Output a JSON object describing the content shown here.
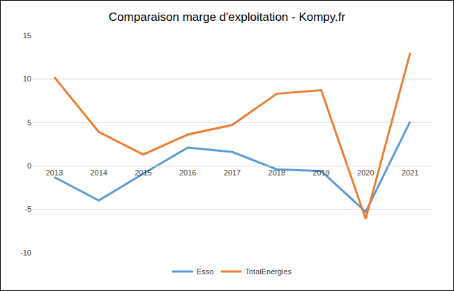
{
  "chart_data": {
    "type": "line",
    "title": "Comparaison marge d'exploitation - Kompy.fr",
    "categories": [
      "2013",
      "2014",
      "2015",
      "2016",
      "2017",
      "2018",
      "2019",
      "2020",
      "2021"
    ],
    "series": [
      {
        "name": "Esso",
        "color": "#5B9BD5",
        "values": [
          -1.3,
          -4.0,
          -0.9,
          2.1,
          1.6,
          -0.4,
          -0.6,
          -5.3,
          5.1
        ]
      },
      {
        "name": "TotalEnergies",
        "color": "#ED7D31",
        "values": [
          10.2,
          3.9,
          1.3,
          3.6,
          4.7,
          8.3,
          8.7,
          -6.1,
          13.0
        ]
      }
    ],
    "ylim": [
      -10,
      15
    ],
    "yticks": [
      -10,
      -5,
      0,
      5,
      10,
      15
    ],
    "grid": true,
    "legend": "bottom"
  }
}
